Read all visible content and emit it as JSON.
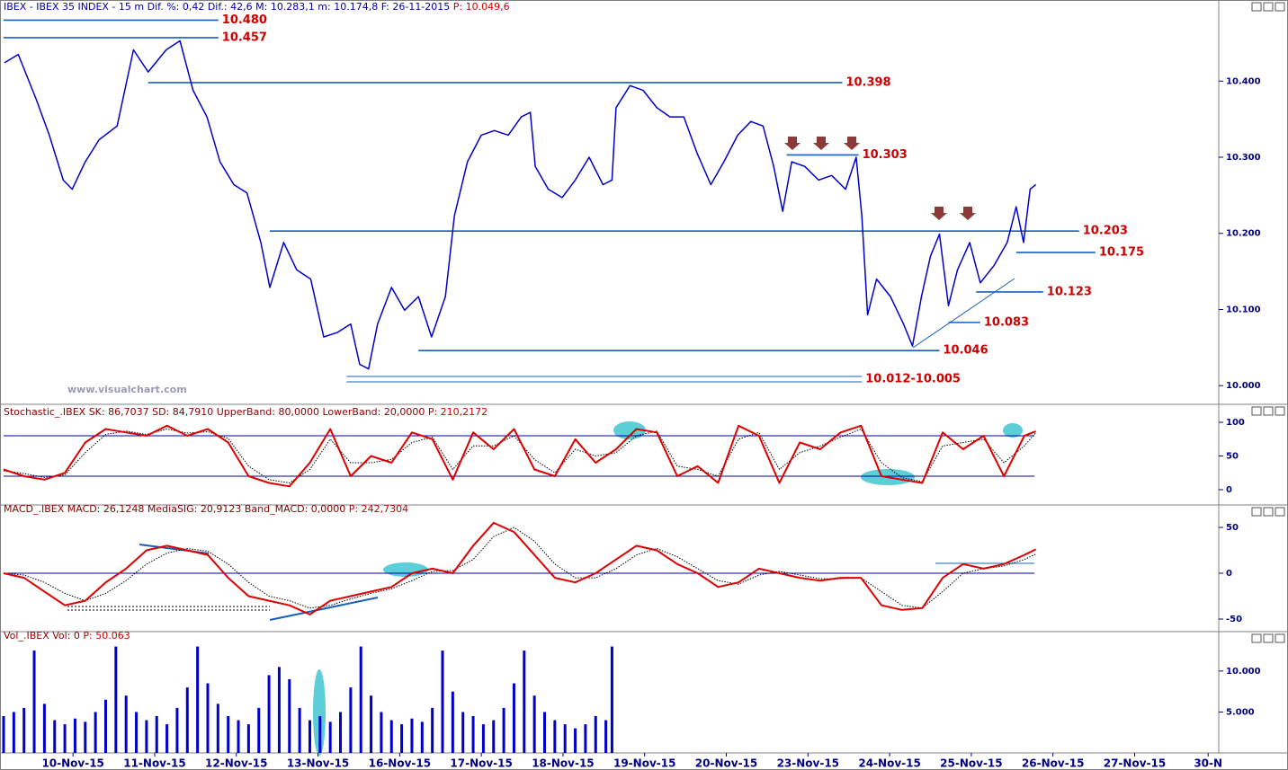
{
  "chart_data": [
    {
      "type": "line",
      "title": "IBEX - IBEX 35 INDEX - 15 m  Dif. %: 0,42  Dif.: 42,6  M: 10.283,1  m: 10.174,8  F: 26-11-2015 ",
      "last_label": "P: 10.049,6",
      "watermark": "www.visualchart.com",
      "xlim": [
        -0.35,
        14.53
      ],
      "ylim": [
        9.979,
        10.49
      ],
      "yticks": [
        {
          "value": 10.0,
          "label": "10.000"
        },
        {
          "value": 10.1,
          "label": "10.100"
        },
        {
          "value": 10.2,
          "label": "10.200"
        },
        {
          "value": 10.3,
          "label": "10.300"
        },
        {
          "value": 10.4,
          "label": "10.400"
        }
      ],
      "x": [
        -0.34,
        -0.17,
        0.05,
        0.21,
        0.38,
        0.49,
        0.65,
        0.82,
        1.04,
        1.24,
        1.42,
        1.64,
        1.81,
        1.97,
        2.14,
        2.3,
        2.47,
        2.63,
        2.8,
        2.91,
        3.08,
        3.24,
        3.41,
        3.57,
        3.74,
        3.9,
        4.01,
        4.12,
        4.23,
        4.4,
        4.56,
        4.73,
        4.89,
        5.06,
        5.17,
        5.33,
        5.5,
        5.66,
        5.83,
        5.99,
        6.1,
        6.16,
        6.32,
        6.49,
        6.65,
        6.82,
        6.99,
        7.1,
        7.15,
        7.32,
        7.48,
        7.65,
        7.81,
        7.98,
        8.14,
        8.31,
        8.47,
        8.64,
        8.8,
        8.95,
        9.08,
        9.19,
        9.3,
        9.46,
        9.63,
        9.79,
        9.96,
        10.09,
        10.16,
        10.23,
        10.34,
        10.51,
        10.67,
        10.78,
        10.89,
        11.0,
        11.11,
        11.22,
        11.33,
        11.48,
        11.61,
        11.78,
        11.94,
        12.05,
        12.14,
        12.22,
        12.29
      ],
      "series": [
        {
          "color": "#0000cc",
          "style": "solid",
          "values": [
            10.424,
            10.435,
            10.376,
            10.329,
            10.27,
            10.258,
            10.294,
            10.323,
            10.341,
            10.441,
            10.412,
            10.441,
            10.453,
            10.388,
            10.353,
            10.294,
            10.264,
            10.253,
            10.188,
            10.129,
            10.188,
            10.152,
            10.14,
            10.064,
            10.07,
            10.081,
            10.028,
            10.022,
            10.081,
            10.129,
            10.099,
            10.117,
            10.064,
            10.117,
            10.223,
            10.294,
            10.329,
            10.335,
            10.329,
            10.353,
            10.359,
            10.288,
            10.258,
            10.247,
            10.27,
            10.3,
            10.264,
            10.27,
            10.365,
            10.394,
            10.388,
            10.365,
            10.353,
            10.353,
            10.306,
            10.264,
            10.294,
            10.329,
            10.347,
            10.341,
            10.288,
            10.229,
            10.294,
            10.288,
            10.27,
            10.276,
            10.258,
            10.3,
            10.223,
            10.093,
            10.14,
            10.117,
            10.081,
            10.052,
            10.117,
            10.17,
            10.199,
            10.105,
            10.152,
            10.188,
            10.135,
            10.158,
            10.188,
            10.235,
            10.188,
            10.258,
            10.264
          ]
        }
      ],
      "level_color": "#1560bd",
      "levels": [
        {
          "values": [
            10.48
          ],
          "label": "10.480",
          "x": [
            -0.35,
            2.28
          ]
        },
        {
          "values": [
            10.457
          ],
          "label": "10.457",
          "x": [
            -0.35,
            2.28
          ]
        },
        {
          "values": [
            10.398
          ],
          "label": "10.398",
          "x": [
            1.42,
            9.92
          ]
        },
        {
          "values": [
            10.303
          ],
          "label": "10.303",
          "x": [
            9.24,
            10.12
          ]
        },
        {
          "values": [
            10.203
          ],
          "label": "10.203",
          "x": [
            2.91,
            12.82
          ]
        },
        {
          "values": [
            10.175
          ],
          "label": "10.175",
          "x": [
            12.05,
            13.02
          ]
        },
        {
          "values": [
            10.123
          ],
          "label": "10.123",
          "x": [
            11.56,
            12.38
          ]
        },
        {
          "values": [
            10.083
          ],
          "label": "10.083",
          "x": [
            11.22,
            11.61
          ]
        },
        {
          "values": [
            10.046
          ],
          "label": "10.046",
          "x": [
            4.73,
            11.11
          ]
        },
        {
          "values": [
            10.012,
            10.005
          ],
          "label": "10.012-10.005",
          "x": [
            3.85,
            10.16
          ]
        }
      ]
    },
    {
      "type": "line",
      "title": "Stochastic_.IBEX SK: 86,7037  SD: 84,7910  UpperBand: 80,0000  LowerBand: 20,0000  ",
      "last_label": "P: 210,2172",
      "xlim": [
        -0.35,
        14.53
      ],
      "ylim": [
        -16,
        110.7
      ],
      "yticks": [
        0,
        50,
        100
      ],
      "hlines": [
        80,
        20
      ],
      "hline_color": "#0000aa",
      "x": [
        -0.35,
        -0.1,
        0.15,
        0.4,
        0.65,
        0.9,
        1.15,
        1.4,
        1.65,
        1.9,
        2.15,
        2.4,
        2.65,
        2.9,
        3.15,
        3.4,
        3.65,
        3.9,
        4.15,
        4.4,
        4.65,
        4.9,
        5.15,
        5.4,
        5.65,
        5.9,
        6.15,
        6.4,
        6.65,
        6.9,
        7.15,
        7.4,
        7.65,
        7.9,
        8.15,
        8.4,
        8.65,
        8.9,
        9.15,
        9.4,
        9.65,
        9.9,
        10.15,
        10.4,
        10.65,
        10.9,
        11.15,
        11.4,
        11.65,
        11.9,
        12.15,
        12.29
      ],
      "series": [
        {
          "color": "#000000",
          "style": "dotted",
          "values": [
            28,
            24,
            18,
            22,
            55,
            82,
            87,
            82,
            90,
            84,
            86,
            76,
            35,
            15,
            10,
            30,
            75,
            40,
            40,
            45,
            70,
            78,
            30,
            65,
            65,
            80,
            45,
            25,
            60,
            50,
            55,
            80,
            87,
            35,
            30,
            20,
            75,
            85,
            30,
            55,
            65,
            78,
            90,
            40,
            18,
            12,
            65,
            70,
            75,
            40,
            65,
            84.791
          ]
        },
        {
          "color": "#dd0000",
          "style": "solid",
          "values": [
            30,
            20,
            15,
            25,
            70,
            90,
            85,
            80,
            95,
            80,
            90,
            70,
            20,
            10,
            5,
            40,
            90,
            20,
            50,
            40,
            85,
            75,
            15,
            85,
            60,
            90,
            30,
            20,
            75,
            40,
            60,
            90,
            85,
            20,
            35,
            10,
            95,
            80,
            10,
            70,
            60,
            85,
            95,
            20,
            15,
            10,
            85,
            60,
            80,
            20,
            80,
            86.7037
          ]
        }
      ]
    },
    {
      "type": "line",
      "title": "MACD_.IBEX MACD: 26,1248  MediaSIG: 20,9123  Band_MACD: 0,0000  ",
      "last_label": "P: 242,7304",
      "xlim": [
        -0.35,
        14.53
      ],
      "ylim": [
        -60.8,
        61.8
      ],
      "yticks": [
        -50,
        0,
        50
      ],
      "hlines": [
        0
      ],
      "hline_color": "#0000aa",
      "x": [
        -0.35,
        -0.1,
        0.15,
        0.4,
        0.65,
        0.9,
        1.15,
        1.4,
        1.65,
        1.9,
        2.15,
        2.4,
        2.65,
        2.9,
        3.15,
        3.4,
        3.65,
        3.9,
        4.15,
        4.4,
        4.65,
        4.9,
        5.15,
        5.4,
        5.65,
        5.9,
        6.15,
        6.4,
        6.65,
        6.9,
        7.15,
        7.4,
        7.65,
        7.9,
        8.15,
        8.4,
        8.65,
        8.9,
        9.15,
        9.4,
        9.65,
        9.9,
        10.15,
        10.4,
        10.65,
        10.9,
        11.15,
        11.4,
        11.65,
        11.9,
        12.15,
        12.29
      ],
      "series": [
        {
          "color": "#000000",
          "style": "dotted",
          "values": [
            0,
            -2,
            -10,
            -22,
            -30,
            -22,
            -8,
            10,
            22,
            27,
            24,
            10,
            -10,
            -25,
            -30,
            -38,
            -35,
            -28,
            -22,
            -17,
            -8,
            2,
            3,
            15,
            40,
            50,
            35,
            10,
            -5,
            -5,
            5,
            20,
            27,
            18,
            5,
            -8,
            -12,
            -2,
            2,
            -2,
            -6,
            -6,
            -5,
            -20,
            -35,
            -38,
            -20,
            0,
            5,
            8,
            15,
            20.9123
          ]
        },
        {
          "color": "#dd0000",
          "style": "solid",
          "values": [
            0,
            -5,
            -20,
            -35,
            -30,
            -10,
            5,
            25,
            30,
            25,
            20,
            -5,
            -25,
            -30,
            -35,
            -45,
            -30,
            -25,
            -20,
            -15,
            0,
            5,
            0,
            30,
            55,
            45,
            20,
            -5,
            -10,
            0,
            15,
            30,
            25,
            10,
            0,
            -15,
            -10,
            5,
            0,
            -5,
            -8,
            -5,
            -5,
            -35,
            -40,
            -38,
            -5,
            10,
            5,
            10,
            20,
            26.1248
          ]
        }
      ]
    },
    {
      "type": "bar",
      "title": "Vol_.IBEX Vol: 0  ",
      "last_label": "P: 50.063",
      "xlim": [
        -0.35,
        14.53
      ],
      "ylim": [
        0,
        13500
      ],
      "yticks": [
        {
          "value": 5000,
          "label": "5.000"
        },
        {
          "value": 10000,
          "label": "10.000"
        }
      ],
      "color": "#0000cc",
      "x": [
        -0.35,
        -0.225,
        -0.1,
        0.025,
        0.15,
        0.275,
        0.4,
        0.525,
        0.65,
        0.775,
        0.9,
        1.025,
        1.15,
        1.275,
        1.4,
        1.525,
        1.65,
        1.775,
        1.9,
        2.025,
        2.15,
        2.275,
        2.4,
        2.525,
        2.65,
        2.775,
        2.9,
        3.025,
        3.15,
        3.275,
        3.4,
        3.525,
        3.65,
        3.775,
        3.9,
        4.025,
        4.15,
        4.275,
        4.4,
        4.525,
        4.65,
        4.775,
        4.9,
        5.025,
        5.15,
        5.275,
        5.4,
        5.525,
        5.65,
        5.775,
        5.9,
        6.025,
        6.15,
        6.275,
        6.4,
        6.525,
        6.65,
        6.775,
        6.9,
        7.025,
        7.1
      ],
      "values": [
        4500,
        5000,
        5500,
        12500,
        6000,
        4000,
        3500,
        4200,
        3800,
        5000,
        6500,
        13000,
        7000,
        5000,
        4000,
        4500,
        3500,
        5500,
        8000,
        13000,
        8500,
        6000,
        4500,
        4000,
        3500,
        5500,
        9500,
        10500,
        9000,
        5500,
        4000,
        4500,
        3800,
        5000,
        8000,
        13000,
        7000,
        5000,
        4000,
        3500,
        4200,
        3800,
        5500,
        12500,
        7500,
        5000,
        4500,
        3500,
        4000,
        5500,
        8500,
        12500,
        7000,
        5000,
        4000,
        3500,
        3000,
        3500,
        4500,
        4000,
        13000
      ],
      "xticks": [
        {
          "value": 0.5,
          "label": "10-Nov-15"
        },
        {
          "value": 1.5,
          "label": "11-Nov-15"
        },
        {
          "value": 2.5,
          "label": "12-Nov-15"
        },
        {
          "value": 3.5,
          "label": "13-Nov-15"
        },
        {
          "value": 4.5,
          "label": "16-Nov-15"
        },
        {
          "value": 5.5,
          "label": "17-Nov-15"
        },
        {
          "value": 6.5,
          "label": "18-Nov-15"
        },
        {
          "value": 7.5,
          "label": "19-Nov-15"
        },
        {
          "value": 8.5,
          "label": "20-Nov-15"
        },
        {
          "value": 9.5,
          "label": "23-Nov-15"
        },
        {
          "value": 10.5,
          "label": "24-Nov-15"
        },
        {
          "value": 11.5,
          "label": "25-Nov-15"
        },
        {
          "value": 12.5,
          "label": "26-Nov-15"
        },
        {
          "value": 13.5,
          "label": "27-Nov-15"
        },
        {
          "value": 14.4,
          "label": "30-N"
        }
      ]
    }
  ]
}
